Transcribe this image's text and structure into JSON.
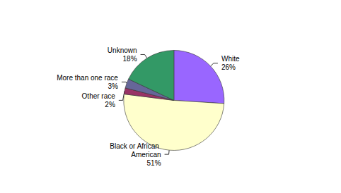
{
  "chart_data": {
    "type": "pie",
    "categories": [
      "White",
      "Black or African American",
      "Other race",
      "More than one race",
      "Unknown"
    ],
    "values": [
      26,
      51,
      2,
      3,
      18
    ],
    "value_labels": [
      "26%",
      "51%",
      "2%",
      "3%",
      "18%"
    ],
    "colors": [
      "#9966FF",
      "#FFFFCC",
      "#993366",
      "#666699",
      "#339966"
    ],
    "data_labels": true
  }
}
